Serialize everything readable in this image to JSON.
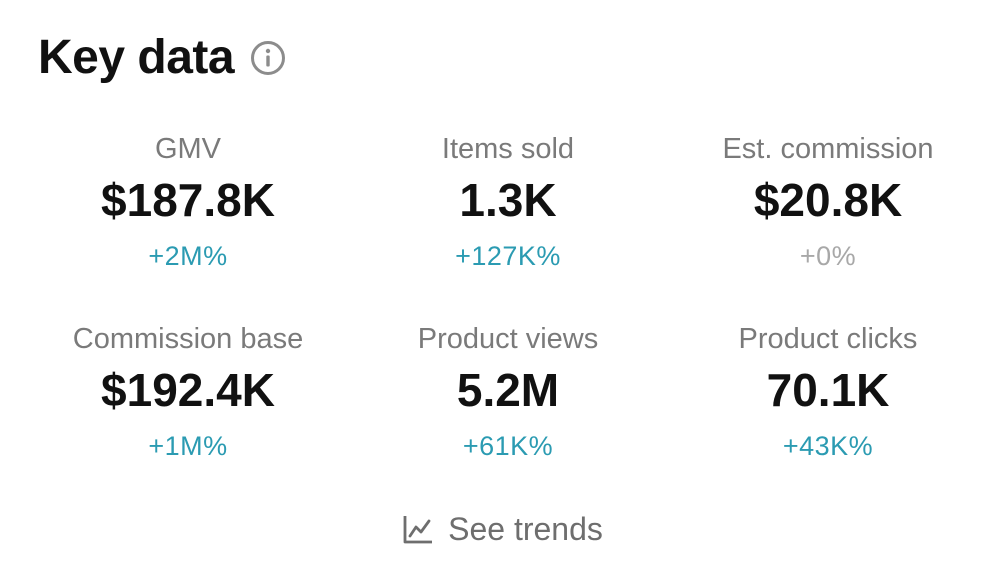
{
  "header": {
    "title": "Key data",
    "info_icon": "info-circle-icon"
  },
  "colors": {
    "positive": "#2b9bb2",
    "neutral": "#a8a8a8",
    "label": "#7a7a7a",
    "value": "#111111"
  },
  "metrics": [
    {
      "label": "GMV",
      "value": "$187.8K",
      "change": "+2M%"
    },
    {
      "label": "Items sold",
      "value": "1.3K",
      "change": "+127K%"
    },
    {
      "label": "Est. commission",
      "value": "$20.8K",
      "change": "+0%"
    },
    {
      "label": "Commission base",
      "value": "$192.4K",
      "change": "+1M%"
    },
    {
      "label": "Product views",
      "value": "5.2M",
      "change": "+61K%"
    },
    {
      "label": "Product clicks",
      "value": "70.1K",
      "change": "+43K%"
    }
  ],
  "footer": {
    "trends_label": "See trends",
    "trends_icon": "line-chart-icon"
  }
}
